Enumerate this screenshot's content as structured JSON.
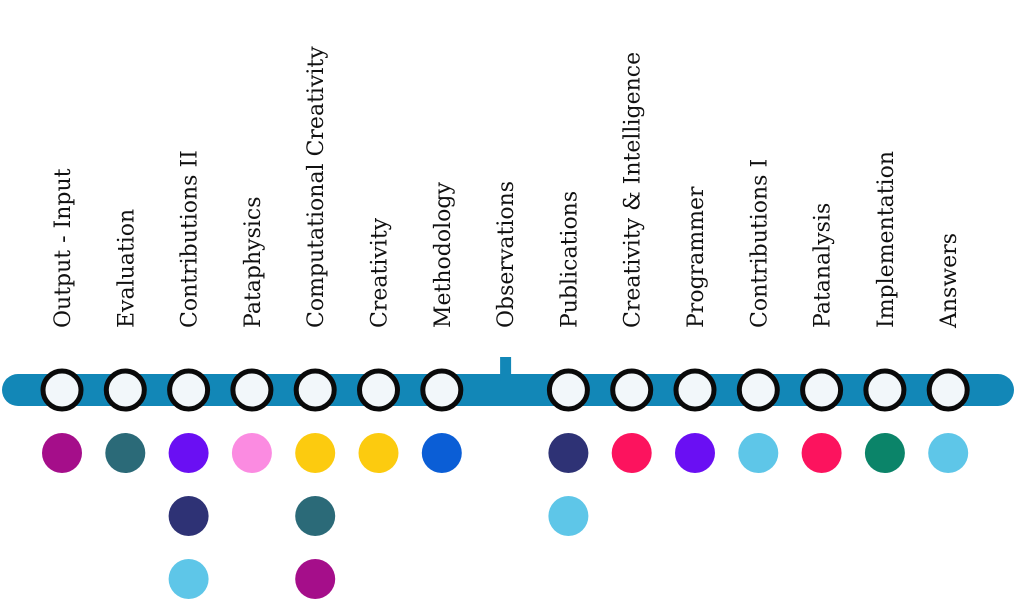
{
  "line_color": "#1287b7",
  "station_fill": "#f2f7fa",
  "station_stroke": "#0a0a0a",
  "stations": [
    {
      "label": "Output - Input",
      "dots": [
        "#a50e8a"
      ]
    },
    {
      "label": "Evaluation",
      "dots": [
        "#2b6a78"
      ]
    },
    {
      "label": "Contributions II",
      "dots": [
        "#6a0ff3",
        "#2e3275",
        "#5ec6e8"
      ]
    },
    {
      "label": "Pataphysics",
      "dots": [
        "#fb8be1"
      ]
    },
    {
      "label": "Computational Creativity",
      "dots": [
        "#fccb0f",
        "#2b6a78",
        "#a50e8a"
      ]
    },
    {
      "label": "Creativity",
      "dots": [
        "#fccb0f"
      ]
    },
    {
      "label": "Methodology",
      "dots": [
        "#0b5ed6"
      ]
    },
    {
      "label": "Observations",
      "dots": [],
      "marker": "tick"
    },
    {
      "label": "Publications",
      "dots": [
        "#2e3275",
        "#5ec6e8"
      ]
    },
    {
      "label": "Creativity & Intelligence",
      "dots": [
        "#fc135e"
      ]
    },
    {
      "label": "Programmer",
      "dots": [
        "#6a0ff3"
      ]
    },
    {
      "label": "Contributions I",
      "dots": [
        "#5ec6e8"
      ]
    },
    {
      "label": "Patanalysis",
      "dots": [
        "#fc135e"
      ]
    },
    {
      "label": "Implementation",
      "dots": [
        "#0b8469"
      ]
    },
    {
      "label": "Answers",
      "dots": [
        "#5ec6e8"
      ]
    }
  ]
}
